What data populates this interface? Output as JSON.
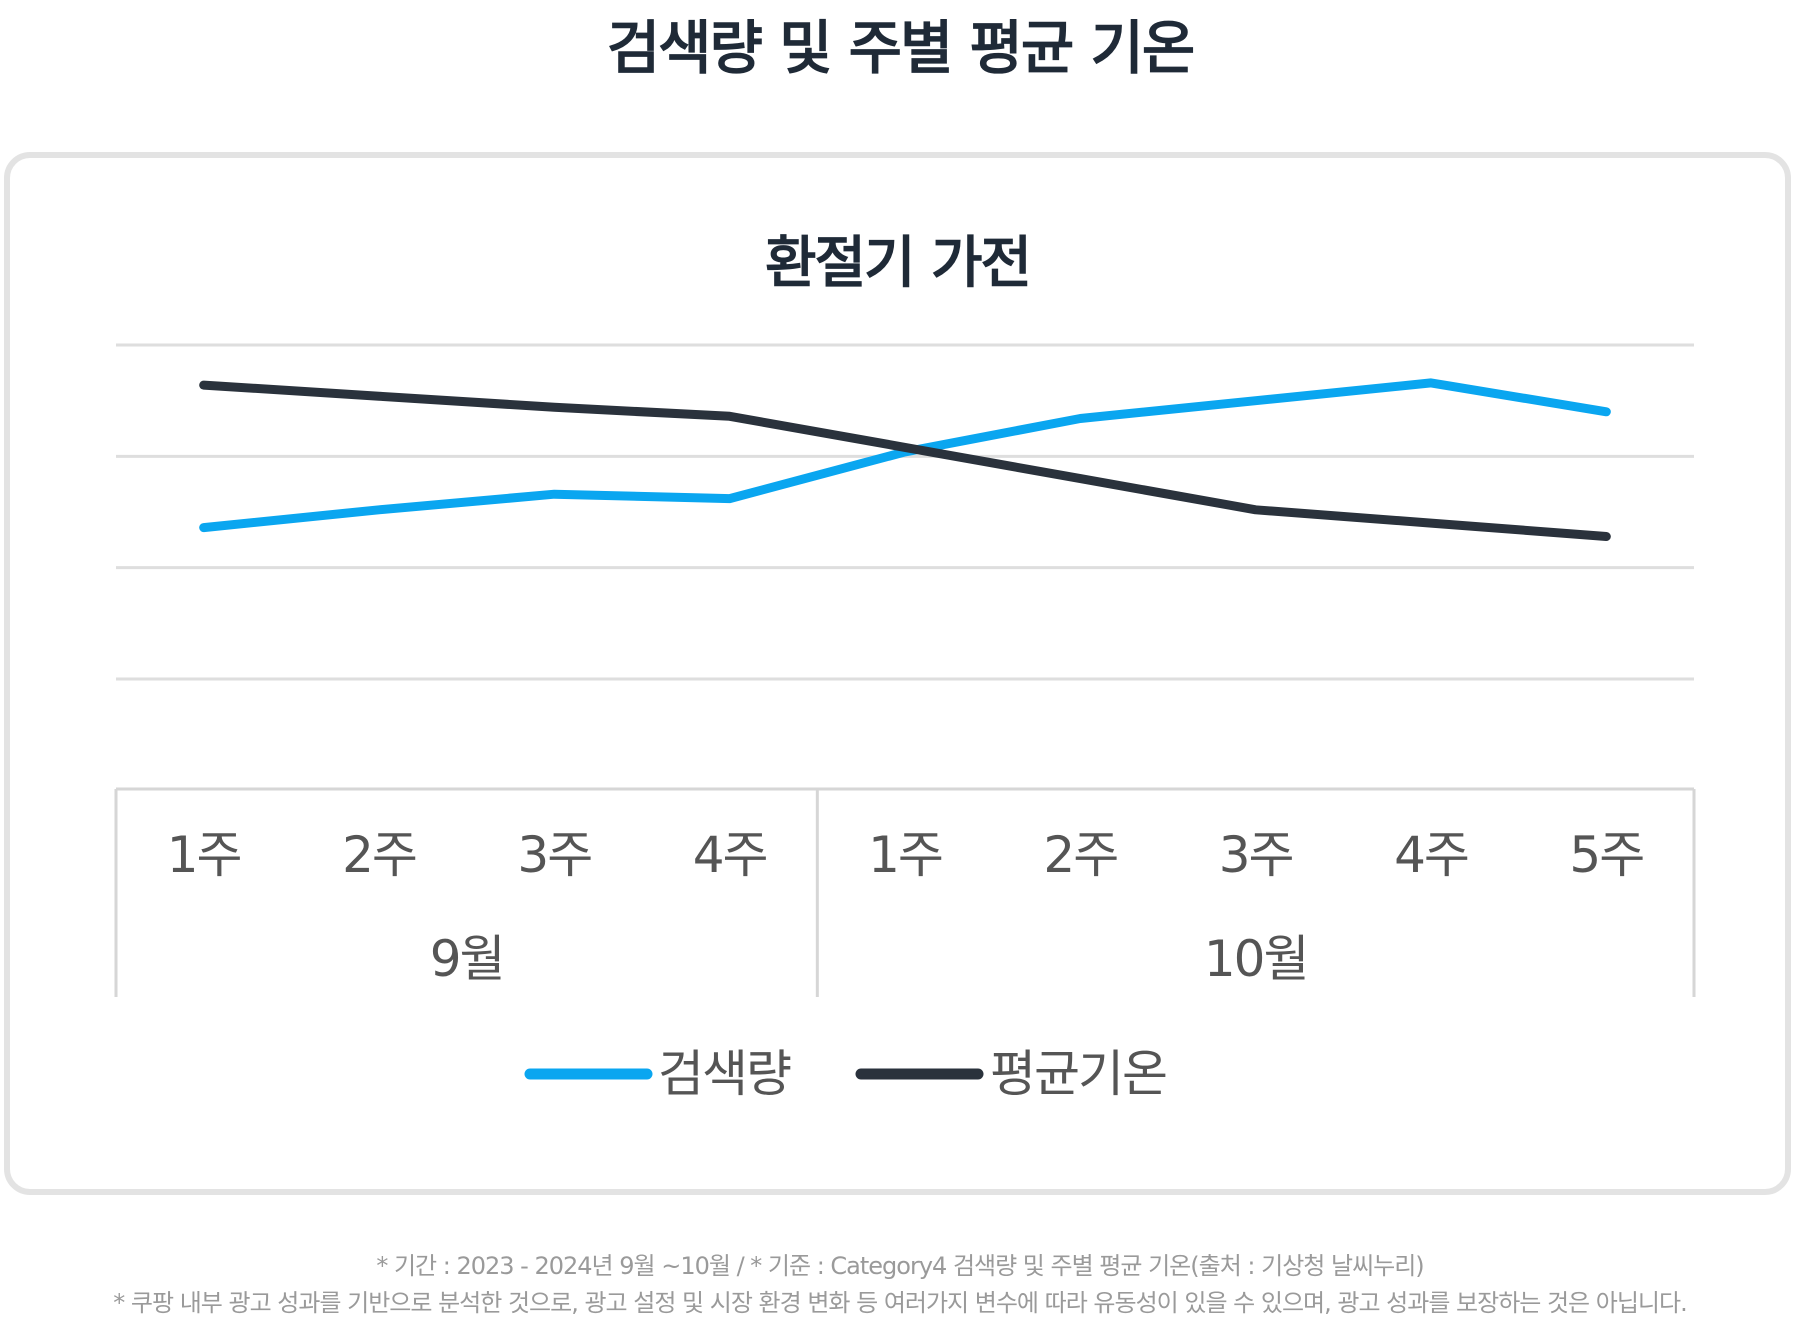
{
  "page_title": "검색량 및 주별 평균 기온",
  "chart_data": {
    "type": "line",
    "title": "환절기 가전",
    "categories": [
      "1주",
      "2주",
      "3주",
      "4주",
      "1주",
      "2주",
      "3주",
      "4주",
      "5주"
    ],
    "groups": [
      {
        "label": "9월",
        "count": 4
      },
      {
        "label": "10월",
        "count": 5
      }
    ],
    "series": [
      {
        "name": "검색량",
        "color": "#0aa6f0",
        "values": [
          18,
          26,
          33,
          31,
          52,
          67,
          75,
          83,
          70
        ]
      },
      {
        "name": "평균기온",
        "color": "#2a323c",
        "values": [
          82,
          77,
          72,
          68,
          54,
          40,
          26,
          20,
          14
        ]
      }
    ],
    "ylim": [
      -50,
      100
    ],
    "gridlines": 4,
    "legend": "bottom-center",
    "grid": true
  },
  "notes": [
    "* 기간 : 2023 - 2024년 9월 ~10월  / * 기준 : Category4 검색량 및 주별 평균 기온(출처 : 기상청 날씨누리)",
    "* 쿠팡 내부 광고 성과를 기반으로 분석한 것으로, 광고 설정 및 시장 환경 변화 등 여러가지 변수에 따라 유동성이 있을 수 있으며, 광고 성과를 보장하는 것은 아닙니다."
  ]
}
